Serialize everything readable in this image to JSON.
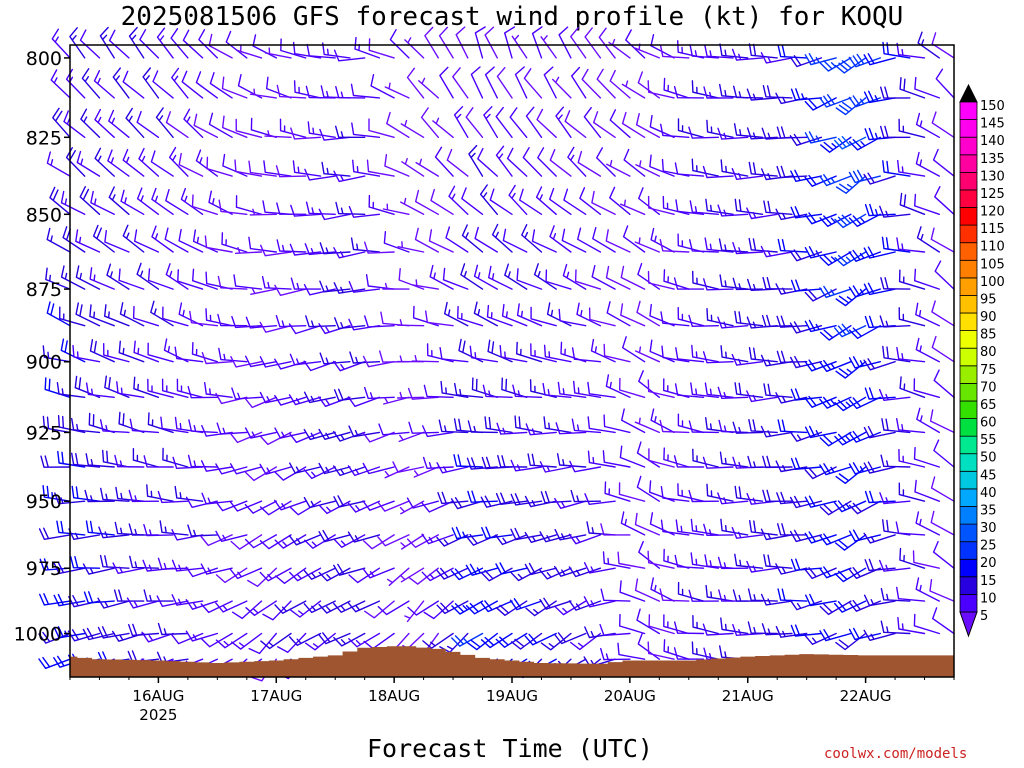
{
  "chart_data": {
    "type": "wind-profile",
    "title": "2025081506 GFS forecast wind profile (kt) for KOQU",
    "xlabel": "Forecast Time (UTC)",
    "ylabel": "",
    "credit": "coolwx.com/models",
    "y_axis": {
      "scale": "log-pressure",
      "inverted": true,
      "ylim": [
        1017,
        796
      ],
      "ticks": [
        800,
        825,
        850,
        875,
        900,
        925,
        950,
        975,
        1000
      ]
    },
    "x_axis": {
      "start": "2025-08-15T06",
      "end": "2025-08-22T18",
      "ticks": [
        {
          "label": "16AUG",
          "sublabel": "2025",
          "time": "2025-08-16T00"
        },
        {
          "label": "17AUG",
          "sublabel": "",
          "time": "2025-08-17T00"
        },
        {
          "label": "18AUG",
          "sublabel": "",
          "time": "2025-08-18T00"
        },
        {
          "label": "19AUG",
          "sublabel": "",
          "time": "2025-08-19T00"
        },
        {
          "label": "20AUG",
          "sublabel": "",
          "time": "2025-08-20T00"
        },
        {
          "label": "21AUG",
          "sublabel": "",
          "time": "2025-08-21T00"
        },
        {
          "label": "22AUG",
          "sublabel": "",
          "time": "2025-08-22T00"
        }
      ]
    },
    "grid": false,
    "barb_levels": [
      800,
      812.5,
      825,
      837.5,
      850,
      862.5,
      875,
      887.5,
      900,
      912.5,
      925,
      937.5,
      950,
      962.5,
      975,
      987.5,
      1000,
      1010
    ],
    "barb_interval_hours": 3,
    "wind_keyframes": [
      {
        "time": "2025-08-15T06",
        "low_dir": 255,
        "low_spd": 22,
        "high_dir": 320,
        "high_spd": 15
      },
      {
        "time": "2025-08-16T06",
        "low_dir": 260,
        "low_spd": 14,
        "high_dir": 320,
        "high_spd": 12
      },
      {
        "time": "2025-08-17T00",
        "low_dir": 225,
        "low_spd": 12,
        "high_dir": 290,
        "high_spd": 8
      },
      {
        "time": "2025-08-17T18",
        "low_dir": 245,
        "low_spd": 18,
        "high_dir": 270,
        "high_spd": 14
      },
      {
        "time": "2025-08-18T06",
        "low_dir": 220,
        "low_spd": 5,
        "high_dir": 320,
        "high_spd": 6
      },
      {
        "time": "2025-08-18T18",
        "low_dir": 235,
        "low_spd": 24,
        "high_dir": 340,
        "high_spd": 10
      },
      {
        "time": "2025-08-19T18",
        "low_dir": 240,
        "low_spd": 16,
        "high_dir": 325,
        "high_spd": 9
      },
      {
        "time": "2025-08-20T06",
        "low_dir": 300,
        "low_spd": 10,
        "high_dir": 300,
        "high_spd": 8
      },
      {
        "time": "2025-08-20T12",
        "low_dir": 280,
        "low_spd": 12,
        "high_dir": 280,
        "high_spd": 12
      },
      {
        "time": "2025-08-21T12",
        "low_dir": 265,
        "low_spd": 18,
        "high_dir": 265,
        "high_spd": 18
      },
      {
        "time": "2025-08-22T00",
        "low_dir": 240,
        "low_spd": 20,
        "high_dir": 235,
        "high_spd": 30
      },
      {
        "time": "2025-08-22T18",
        "low_dir": 300,
        "low_spd": 10,
        "high_dir": 310,
        "high_spd": 10
      }
    ],
    "surface_pressure": [
      {
        "time": "2025-08-15T06",
        "p": 1009
      },
      {
        "time": "2025-08-15T12",
        "p": 1010
      },
      {
        "time": "2025-08-16T00",
        "p": 1010.5
      },
      {
        "time": "2025-08-16T12",
        "p": 1011.5
      },
      {
        "time": "2025-08-17T00",
        "p": 1010.5
      },
      {
        "time": "2025-08-17T12",
        "p": 1008.5
      },
      {
        "time": "2025-08-17T18",
        "p": 1005.5
      },
      {
        "time": "2025-08-18T02",
        "p": 1004.8
      },
      {
        "time": "2025-08-18T09",
        "p": 1006
      },
      {
        "time": "2025-08-18T18",
        "p": 1009.5
      },
      {
        "time": "2025-08-19T06",
        "p": 1011.5
      },
      {
        "time": "2025-08-19T18",
        "p": 1011.8
      },
      {
        "time": "2025-08-20T00",
        "p": 1010.5
      },
      {
        "time": "2025-08-20T12",
        "p": 1010.5
      },
      {
        "time": "2025-08-21T00",
        "p": 1009
      },
      {
        "time": "2025-08-21T12",
        "p": 1008
      },
      {
        "time": "2025-08-22T00",
        "p": 1008.5
      },
      {
        "time": "2025-08-22T18",
        "p": 1008.5
      }
    ],
    "terrain_color": "#9e5530",
    "colorbar": {
      "unit": "kt",
      "levels": [
        5,
        10,
        15,
        20,
        25,
        30,
        35,
        40,
        45,
        50,
        55,
        60,
        65,
        70,
        75,
        80,
        85,
        90,
        95,
        100,
        105,
        110,
        115,
        120,
        125,
        130,
        135,
        140,
        145,
        150
      ],
      "colors": [
        "#6a0dff",
        "#4b00ff",
        "#2800e0",
        "#0000ff",
        "#0033ff",
        "#0055ff",
        "#0080ff",
        "#00a8ff",
        "#00c8e0",
        "#00e0c0",
        "#00e890",
        "#00e040",
        "#33e000",
        "#66e600",
        "#99ee00",
        "#ccff00",
        "#eeff00",
        "#ffe000",
        "#ffc000",
        "#ffa000",
        "#ff8000",
        "#ff6000",
        "#ff3000",
        "#ff0000",
        "#ff0040",
        "#ff0070",
        "#ff00a0",
        "#ff00cc",
        "#ff00ee",
        "#ff00ff"
      ]
    }
  }
}
